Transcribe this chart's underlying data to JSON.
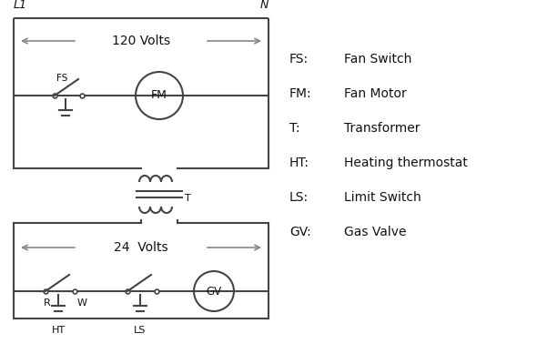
{
  "bg_color": "#ffffff",
  "line_color": "#444444",
  "arrow_color": "#888888",
  "label_color": "#111111",
  "fig_width": 5.9,
  "fig_height": 4.0,
  "dpi": 100,
  "legend_items": [
    [
      "FS:",
      "Fan Switch"
    ],
    [
      "FM:",
      " Fan Motor"
    ],
    [
      "T:",
      "    Transformer"
    ],
    [
      "HT:",
      " Heating thermostat"
    ],
    [
      "LS:",
      " Limit Switch"
    ],
    [
      "GV:",
      "  Gas Valve"
    ]
  ],
  "volts_120_label": "120 Volts",
  "volts_24_label": "24  Volts",
  "L1_label": "L1",
  "N_label": "N",
  "T_label": "T",
  "FS_label": "FS",
  "FM_label": "FM",
  "HT_label": "HT",
  "LS_label": "LS",
  "GV_label": "GV",
  "R_label": "R",
  "W_label": "W"
}
